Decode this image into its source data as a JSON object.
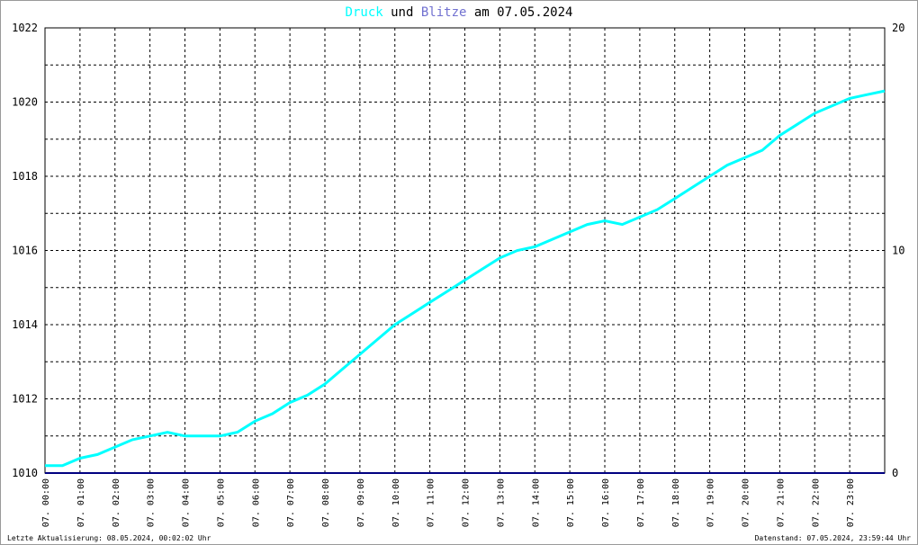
{
  "chart_data": {
    "type": "line",
    "title_parts": [
      "und",
      "am 07.05.2024"
    ],
    "x": [
      0,
      0.5,
      1,
      1.5,
      2,
      2.5,
      3,
      3.5,
      4,
      4.5,
      5,
      5.5,
      6,
      6.5,
      7,
      7.5,
      8,
      8.5,
      9,
      9.5,
      10,
      10.5,
      11,
      11.5,
      12,
      12.5,
      13,
      13.5,
      14,
      14.5,
      15,
      15.5,
      16,
      16.5,
      17,
      17.5,
      18,
      18.5,
      19,
      19.5,
      20,
      20.5,
      21,
      21.5,
      22,
      22.5,
      23,
      23.5,
      24
    ],
    "series": [
      {
        "name": "Druck",
        "color": "#00ffff",
        "values": [
          1010.2,
          1010.2,
          1010.4,
          1010.5,
          1010.7,
          1010.9,
          1011.0,
          1011.1,
          1011.0,
          1011.0,
          1011.0,
          1011.1,
          1011.4,
          1011.6,
          1011.9,
          1012.1,
          1012.4,
          1012.8,
          1013.2,
          1013.6,
          1014.0,
          1014.3,
          1014.6,
          1014.9,
          1015.2,
          1015.5,
          1015.8,
          1016.0,
          1016.1,
          1016.3,
          1016.5,
          1016.7,
          1016.8,
          1016.7,
          1016.9,
          1017.1,
          1017.4,
          1017.7,
          1018.0,
          1018.3,
          1018.5,
          1018.7,
          1019.1,
          1019.4,
          1019.7,
          1019.9,
          1020.1,
          1020.2,
          1020.3
        ]
      },
      {
        "name": "Blitze",
        "color": "#000080",
        "title_color": "#7070d0",
        "axis": "y2",
        "values": [
          0,
          0,
          0,
          0,
          0,
          0,
          0,
          0,
          0,
          0,
          0,
          0,
          0,
          0,
          0,
          0,
          0,
          0,
          0,
          0,
          0,
          0,
          0,
          0,
          0,
          0,
          0,
          0,
          0,
          0,
          0,
          0,
          0,
          0,
          0,
          0,
          0,
          0,
          0,
          0,
          0,
          0,
          0,
          0,
          0,
          0,
          0,
          0,
          0
        ]
      }
    ],
    "xlim": [
      0,
      24
    ],
    "xticks": [
      {
        "value": 0,
        "label": "07. 00:00"
      },
      {
        "value": 1,
        "label": "07. 01:00"
      },
      {
        "value": 2,
        "label": "07. 02:00"
      },
      {
        "value": 3,
        "label": "07. 03:00"
      },
      {
        "value": 4,
        "label": "07. 04:00"
      },
      {
        "value": 5,
        "label": "07. 05:00"
      },
      {
        "value": 6,
        "label": "07. 06:00"
      },
      {
        "value": 7,
        "label": "07. 07:00"
      },
      {
        "value": 8,
        "label": "07. 08:00"
      },
      {
        "value": 9,
        "label": "07. 09:00"
      },
      {
        "value": 10,
        "label": "07. 10:00"
      },
      {
        "value": 11,
        "label": "07. 11:00"
      },
      {
        "value": 12,
        "label": "07. 12:00"
      },
      {
        "value": 13,
        "label": "07. 13:00"
      },
      {
        "value": 14,
        "label": "07. 14:00"
      },
      {
        "value": 15,
        "label": "07. 15:00"
      },
      {
        "value": 16,
        "label": "07. 16:00"
      },
      {
        "value": 17,
        "label": "07. 17:00"
      },
      {
        "value": 18,
        "label": "07. 18:00"
      },
      {
        "value": 19,
        "label": "07. 19:00"
      },
      {
        "value": 20,
        "label": "07. 20:00"
      },
      {
        "value": 21,
        "label": "07. 21:00"
      },
      {
        "value": 22,
        "label": "07. 22:00"
      },
      {
        "value": 23,
        "label": "07. 23:00"
      }
    ],
    "ylim": [
      1010,
      1022
    ],
    "yticks": [
      1010,
      1012,
      1014,
      1016,
      1018,
      1020,
      1022
    ],
    "minor_yticks": [
      1011,
      1013,
      1015,
      1017,
      1019,
      1021
    ],
    "y2lim": [
      0,
      20
    ],
    "y2ticks": [
      0,
      10,
      20
    ],
    "grid": true,
    "footer_left": "Letzte Aktualisierung: 08.05.2024, 00:02:02 Uhr",
    "footer_right": "Datenstand: 07.05.2024, 23:59:44 Uhr"
  }
}
